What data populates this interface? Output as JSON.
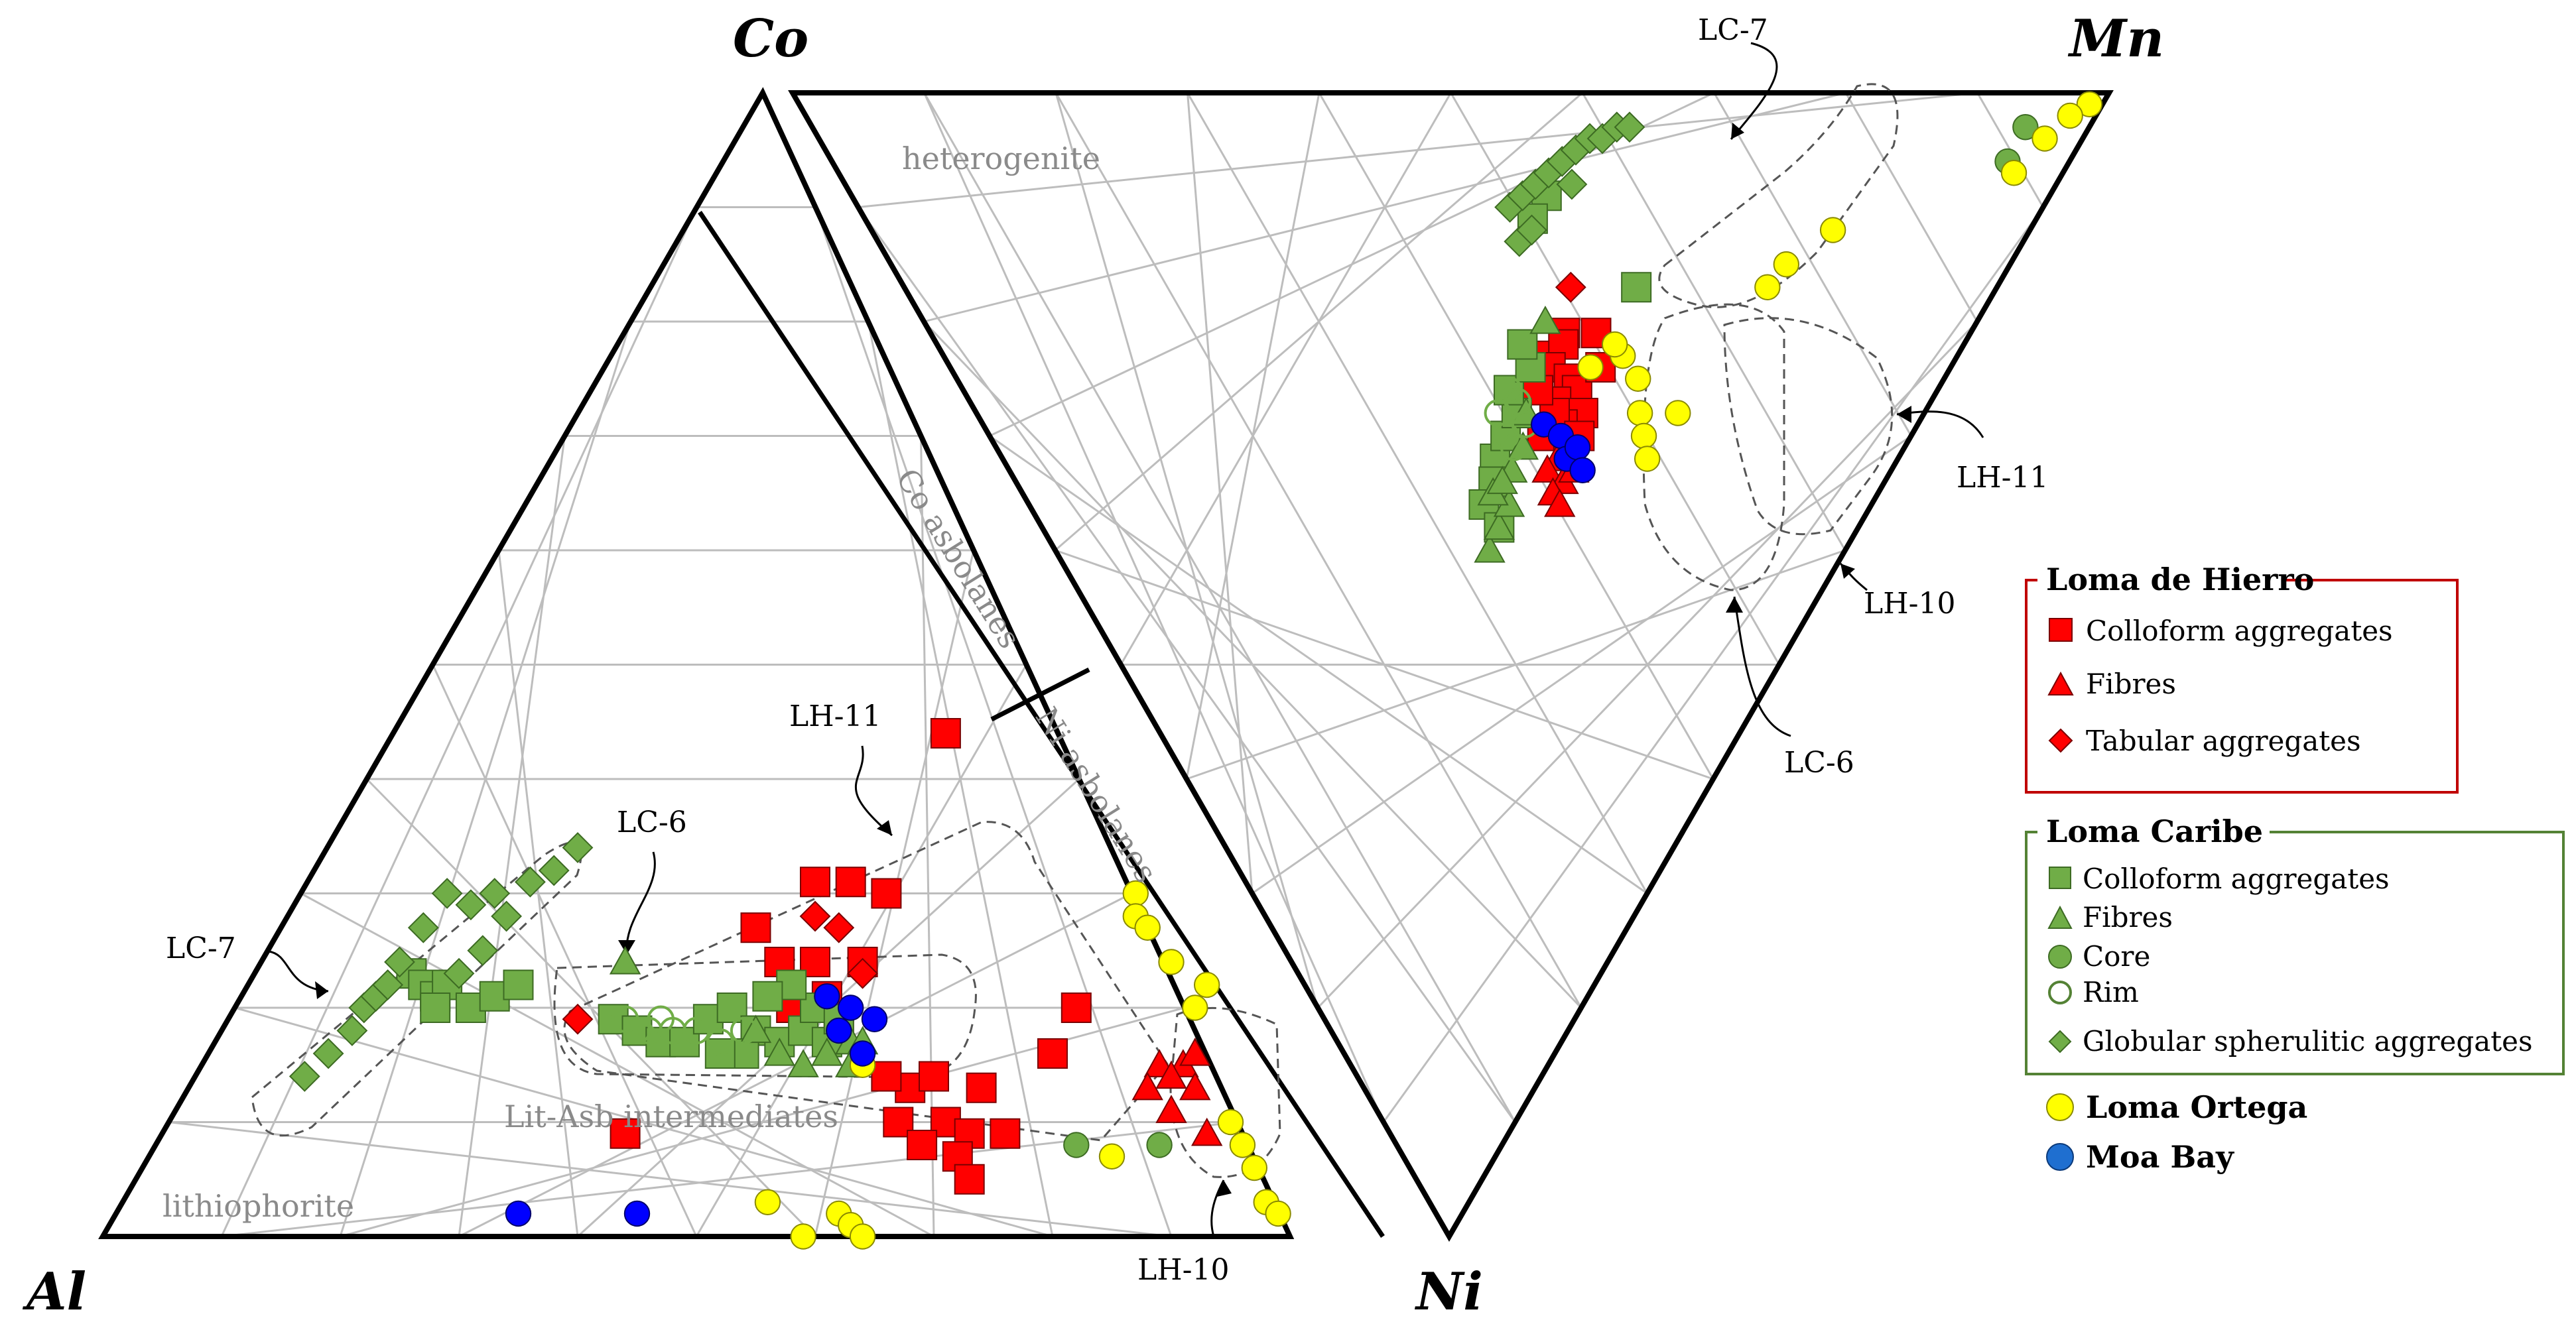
{
  "chart_data": {
    "type": "scatter",
    "title": "",
    "diagrams": [
      {
        "name": "Al-Co-Ni ternary",
        "vertices": {
          "left": "Al",
          "top": "Co",
          "right": "Ni"
        }
      },
      {
        "name": "Co-Mn-Ni ternary",
        "vertices": {
          "left": "Co",
          "top": "Mn",
          "right": "Ni"
        }
      }
    ],
    "vertex_labels": {
      "co": "Co",
      "mn": "Mn",
      "al": "Al",
      "ni": "Ni"
    },
    "field_labels": {
      "heterogenite": "heterogenite",
      "co_asbolanes": "Co asbolanes",
      "ni_asbolanes": "Ni asbolanes",
      "lit_asb": "Lit-Asb intermediates",
      "lithiophorite": "lithiophorite"
    },
    "annotations": {
      "lc7_left": "LC-7",
      "lc6_left": "LC-6",
      "lh11_left": "LH-11",
      "lh10_left": "LH-10",
      "lc7_right": "LC-7",
      "lh11_right": "LH-11",
      "lh10_right": "LH-10",
      "lc6_right": "LC-6"
    },
    "legend": {
      "loma_hierro": {
        "title": "Loma de Hierro",
        "items": [
          "Colloform aggregates",
          "Fibres",
          "Tabular aggregates"
        ]
      },
      "loma_caribe": {
        "title": "Loma Caribe",
        "items": [
          "Colloform aggregates",
          "Fibres",
          "Core",
          "Rim",
          "Globular spherulitic aggregates"
        ]
      },
      "loma_ortega": "Loma Ortega",
      "moa_bay": "Moa Bay"
    },
    "colors": {
      "loma_hierro": "#ff0000",
      "loma_caribe": "#70ad47",
      "loma_caribe_fibre_top": "#00a000",
      "loma_ortega": "#ffff00",
      "moa_bay": "#0000ff",
      "field_label": "#8a8a8a",
      "legend_hierro_border": "#c00000",
      "legend_caribe_border": "#548235"
    },
    "series": [
      {
        "name": "Loma de Hierro - Colloform aggregates",
        "marker": "square",
        "color": "#ff0000",
        "left_points": [
          [
            0.6,
            0.31
          ],
          [
            0.63,
            0.31
          ],
          [
            0.66,
            0.3
          ],
          [
            0.55,
            0.27
          ],
          [
            0.57,
            0.24
          ],
          [
            0.6,
            0.24
          ],
          [
            0.64,
            0.24
          ],
          [
            0.61,
            0.21
          ],
          [
            0.58,
            0.2
          ],
          [
            0.62,
            0.19
          ],
          [
            0.68,
            0.13
          ],
          [
            0.7,
            0.14
          ],
          [
            0.67,
            0.1
          ],
          [
            0.71,
            0.1
          ],
          [
            0.69,
            0.08
          ],
          [
            0.73,
            0.09
          ],
          [
            0.74,
            0.13
          ],
          [
            0.72,
            0.07
          ],
          [
            0.66,
            0.14
          ],
          [
            0.8,
            0.16
          ],
          [
            0.82,
            0.2
          ],
          [
            0.71,
            0.44
          ],
          [
            0.44,
            0.09
          ],
          [
            0.73,
            0.05
          ],
          [
            0.76,
            0.09
          ]
        ],
        "right_points": [
          [
            0.61,
            0.79
          ],
          [
            0.59,
            0.77
          ],
          [
            0.61,
            0.78
          ],
          [
            0.64,
            0.79
          ],
          [
            0.6,
            0.76
          ],
          [
            0.62,
            0.75
          ],
          [
            0.63,
            0.74
          ],
          [
            0.61,
            0.73
          ],
          [
            0.64,
            0.72
          ],
          [
            0.62,
            0.71
          ],
          [
            0.6,
            0.7
          ],
          [
            0.63,
            0.69
          ],
          [
            0.61,
            0.72
          ],
          [
            0.65,
            0.76
          ],
          [
            0.59,
            0.74
          ],
          [
            0.64,
            0.7
          ]
        ]
      },
      {
        "name": "Loma de Hierro - Fibres",
        "marker": "triangle",
        "color": "#ff0000",
        "left_points": [
          [
            0.89,
            0.15
          ],
          [
            0.91,
            0.15
          ],
          [
            0.9,
            0.14
          ],
          [
            0.92,
            0.13
          ],
          [
            0.88,
            0.13
          ],
          [
            0.92,
            0.16
          ],
          [
            0.9,
            0.11
          ],
          [
            0.93,
            0.09
          ]
        ],
        "right_points": [
          [
            0.62,
            0.68
          ],
          [
            0.61,
            0.67
          ],
          [
            0.63,
            0.66
          ],
          [
            0.64,
            0.67
          ],
          [
            0.62,
            0.65
          ],
          [
            0.63,
            0.64
          ]
        ]
      },
      {
        "name": "Loma de Hierro - Tabular aggregates",
        "marker": "diamond",
        "color": "#ff0000",
        "left_points": [
          [
            0.6,
            0.28
          ],
          [
            0.62,
            0.27
          ],
          [
            0.4,
            0.19
          ],
          [
            0.64,
            0.23
          ]
        ],
        "right_points": [
          [
            0.61,
            0.83
          ]
        ]
      },
      {
        "name": "Loma Caribe - Colloform aggregates",
        "marker": "square",
        "color": "#70ad47",
        "left_points": [
          [
            0.26,
            0.23
          ],
          [
            0.27,
            0.22
          ],
          [
            0.28,
            0.21
          ],
          [
            0.29,
            0.22
          ],
          [
            0.31,
            0.2
          ],
          [
            0.28,
            0.2
          ],
          [
            0.33,
            0.21
          ],
          [
            0.35,
            0.22
          ],
          [
            0.43,
            0.19
          ],
          [
            0.45,
            0.18
          ],
          [
            0.47,
            0.17
          ],
          [
            0.49,
            0.17
          ],
          [
            0.51,
            0.19
          ],
          [
            0.53,
            0.2
          ],
          [
            0.55,
            0.18
          ],
          [
            0.57,
            0.17
          ],
          [
            0.59,
            0.18
          ],
          [
            0.61,
            0.17
          ],
          [
            0.6,
            0.2
          ],
          [
            0.62,
            0.19
          ],
          [
            0.54,
            0.16
          ],
          [
            0.52,
            0.16
          ],
          [
            0.58,
            0.22
          ],
          [
            0.56,
            0.21
          ]
        ],
        "right_points": [
          [
            0.55,
            0.68
          ],
          [
            0.56,
            0.7
          ],
          [
            0.57,
            0.72
          ],
          [
            0.56,
            0.74
          ],
          [
            0.58,
            0.76
          ],
          [
            0.57,
            0.78
          ],
          [
            0.55,
            0.66
          ],
          [
            0.54,
            0.64
          ],
          [
            0.56,
            0.62
          ],
          [
            0.67,
            0.83
          ],
          [
            0.58,
            0.91
          ],
          [
            0.57,
            0.89
          ]
        ]
      },
      {
        "name": "Loma Caribe - Fibres",
        "marker": "triangle",
        "color": "#70ad47",
        "left_points": [
          [
            0.44,
            0.24
          ],
          [
            0.55,
            0.18
          ],
          [
            0.57,
            0.16
          ],
          [
            0.59,
            0.15
          ],
          [
            0.61,
            0.16
          ],
          [
            0.63,
            0.17
          ],
          [
            0.63,
            0.15
          ],
          [
            0.64,
            0.17
          ]
        ],
        "right_points": [
          [
            0.55,
            0.6
          ],
          [
            0.56,
            0.62
          ],
          [
            0.57,
            0.64
          ],
          [
            0.55,
            0.65
          ],
          [
            0.57,
            0.67
          ],
          [
            0.58,
            0.69
          ],
          [
            0.56,
            0.66
          ],
          [
            0.58,
            0.72
          ],
          [
            0.59,
            0.8
          ]
        ]
      },
      {
        "name": "Loma Caribe - Core",
        "marker": "circle",
        "color": "#70ad47",
        "left_points": [
          [
            0.82,
            0.08
          ],
          [
            0.89,
            0.08
          ]
        ],
        "right_points": [
          [
            0.95,
            0.97
          ],
          [
            0.95,
            0.94
          ]
        ]
      },
      {
        "name": "Loma Caribe - Rim",
        "marker": "open-circle",
        "color": "#70ad47",
        "left_points": [
          [
            0.44,
            0.19
          ],
          [
            0.45,
            0.18
          ],
          [
            0.46,
            0.18
          ],
          [
            0.47,
            0.19
          ],
          [
            0.48,
            0.18
          ],
          [
            0.5,
            0.18
          ],
          [
            0.52,
            0.17
          ],
          [
            0.54,
            0.18
          ]
        ],
        "right_points": [
          [
            0.56,
            0.74
          ],
          [
            0.57,
            0.73
          ],
          [
            0.55,
            0.72
          ],
          [
            0.56,
            0.7
          ],
          [
            0.57,
            0.69
          ],
          [
            0.58,
            0.71
          ]
        ]
      },
      {
        "name": "Loma Caribe - Globular spherulitic aggregates",
        "marker": "diamond",
        "color": "#70ad47",
        "left_points": [
          [
            0.17,
            0.14
          ],
          [
            0.19,
            0.16
          ],
          [
            0.21,
            0.18
          ],
          [
            0.22,
            0.2
          ],
          [
            0.23,
            0.21
          ],
          [
            0.24,
            0.22
          ],
          [
            0.25,
            0.24
          ],
          [
            0.27,
            0.27
          ],
          [
            0.29,
            0.3
          ],
          [
            0.31,
            0.29
          ],
          [
            0.33,
            0.3
          ],
          [
            0.36,
            0.31
          ],
          [
            0.38,
            0.32
          ],
          [
            0.4,
            0.34
          ],
          [
            0.32,
            0.25
          ],
          [
            0.3,
            0.23
          ],
          [
            0.34,
            0.28
          ]
        ],
        "right_points": [
          [
            0.55,
            0.9
          ],
          [
            0.56,
            0.91
          ],
          [
            0.57,
            0.92
          ],
          [
            0.58,
            0.93
          ],
          [
            0.59,
            0.94
          ],
          [
            0.6,
            0.95
          ],
          [
            0.61,
            0.96
          ],
          [
            0.62,
            0.96
          ],
          [
            0.63,
            0.97
          ],
          [
            0.64,
            0.97
          ],
          [
            0.56,
            0.87
          ],
          [
            0.57,
            0.88
          ],
          [
            0.6,
            0.92
          ]
        ]
      },
      {
        "name": "Loma Ortega",
        "marker": "circle",
        "color": "#ffff00",
        "left_points": [
          [
            0.87,
            0.3
          ],
          [
            0.87,
            0.28
          ],
          [
            0.88,
            0.27
          ],
          [
            0.9,
            0.24
          ],
          [
            0.92,
            0.2
          ],
          [
            0.95,
            0.1
          ],
          [
            0.97,
            0.06
          ],
          [
            0.98,
            0.03
          ],
          [
            0.99,
            0.02
          ],
          [
            0.62,
            0.02
          ],
          [
            0.63,
            0.01
          ],
          [
            0.64,
            0.0
          ],
          [
            0.59,
            0.0
          ],
          [
            0.56,
            0.03
          ],
          [
            0.64,
            0.15
          ],
          [
            0.85,
            0.07
          ],
          [
            0.93,
            0.22
          ],
          [
            0.96,
            0.08
          ]
        ],
        "right_points": [
          [
            0.67,
            0.77
          ],
          [
            0.64,
            0.76
          ],
          [
            0.66,
            0.78
          ],
          [
            0.69,
            0.75
          ],
          [
            0.7,
            0.72
          ],
          [
            0.71,
            0.7
          ],
          [
            0.72,
            0.68
          ],
          [
            0.74,
            0.72
          ],
          [
            0.79,
            0.83
          ],
          [
            0.8,
            0.85
          ],
          [
            0.83,
            0.88
          ],
          [
            0.99,
            0.99
          ],
          [
            0.98,
            0.98
          ],
          [
            0.97,
            0.96
          ],
          [
            0.96,
            0.93
          ]
        ]
      },
      {
        "name": "Moa Bay",
        "marker": "circle",
        "color": "#0000ff",
        "left_points": [
          [
            0.61,
            0.21
          ],
          [
            0.63,
            0.2
          ],
          [
            0.65,
            0.19
          ],
          [
            0.62,
            0.18
          ],
          [
            0.35,
            0.02
          ],
          [
            0.45,
            0.02
          ],
          [
            0.64,
            0.16
          ]
        ],
        "right_points": [
          [
            0.6,
            0.71
          ],
          [
            0.62,
            0.7
          ],
          [
            0.63,
            0.68
          ],
          [
            0.64,
            0.69
          ],
          [
            0.65,
            0.67
          ]
        ]
      }
    ]
  }
}
